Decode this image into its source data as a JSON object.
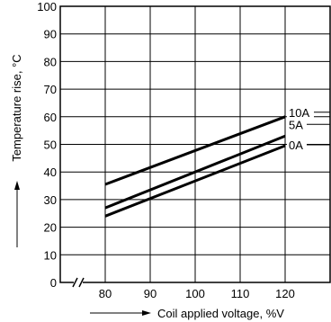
{
  "chart_data": {
    "type": "line",
    "title": "",
    "xlabel": "Coil applied voltage, %V",
    "ylabel": "Temperature rise, °C",
    "xlim": [
      70,
      130
    ],
    "ylim": [
      0,
      100
    ],
    "x_ticks": [
      80,
      90,
      100,
      110,
      120
    ],
    "y_ticks": [
      0,
      10,
      20,
      30,
      40,
      50,
      60,
      70,
      80,
      90,
      100
    ],
    "x_axis_break": true,
    "grid": true,
    "legend": "none",
    "series": [
      {
        "name": "10A",
        "x": [
          80,
          120
        ],
        "y": [
          35.5,
          60
        ]
      },
      {
        "name": "5A",
        "x": [
          80,
          120
        ],
        "y": [
          27,
          53
        ]
      },
      {
        "name": "0A",
        "x": [
          80,
          120
        ],
        "y": [
          24,
          49.5
        ]
      }
    ]
  }
}
